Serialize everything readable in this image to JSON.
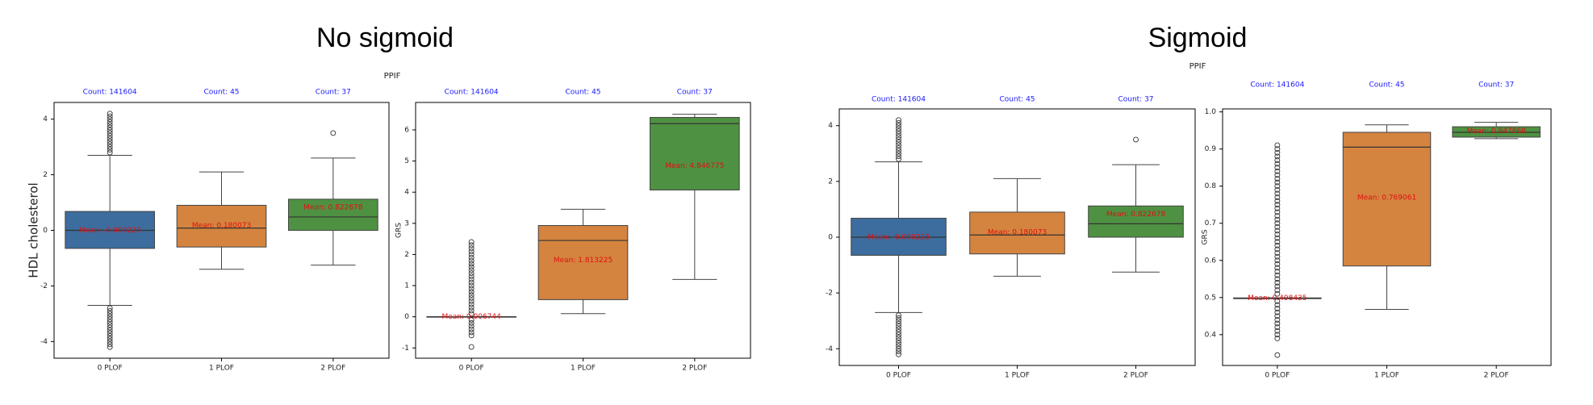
{
  "chart_data": [
    {
      "type": "box",
      "figure_title": "No sigmoid",
      "figure_subtitle": "PPIF",
      "ylabel": "HDL cholesterol",
      "categories": [
        "0 PLOF",
        "1 PLOF",
        "2 PLOF"
      ],
      "colors": [
        "#3d6d9e",
        "#d4843f",
        "#4f9142"
      ],
      "counts": [
        141604,
        45,
        37
      ],
      "count_labels": [
        "Count: 141604",
        "Count: 45",
        "Count: 37"
      ],
      "means": [
        -0.000223,
        0.180073,
        0.822678
      ],
      "mean_labels": [
        "Mean: -0.000223",
        "Mean: 0.180073",
        "Mean: 0.822678"
      ],
      "q1": [
        -0.65,
        -0.6,
        0
      ],
      "median": [
        0,
        0.08,
        0.48
      ],
      "q3": [
        0.68,
        0.9,
        1.12
      ],
      "whislo": [
        -2.7,
        -1.4,
        -1.25
      ],
      "whishi": [
        2.7,
        2.1,
        2.6
      ],
      "outliers": [
        [
          2.8,
          2.9,
          3.0,
          3.1,
          3.2,
          3.3,
          3.4,
          3.5,
          3.6,
          3.7,
          3.8,
          3.9,
          4.0,
          4.1,
          4.2,
          -2.8,
          -2.9,
          -3.0,
          -3.1,
          -3.2,
          -3.3,
          -3.4,
          -3.5,
          -3.6,
          -3.7,
          -3.8,
          -3.9,
          -4.0,
          -4.1,
          -4.2
        ],
        [],
        [
          3.5
        ]
      ],
      "ylim": [
        -4.6,
        4.6
      ],
      "yticks": [
        -4,
        -2,
        0,
        2,
        4
      ]
    },
    {
      "type": "box",
      "ylabel": "GRS",
      "categories": [
        "0 PLOF",
        "1 PLOF",
        "2 PLOF"
      ],
      "colors": [
        "#3d6d9e",
        "#d4843f",
        "#4f9142"
      ],
      "counts": [
        141604,
        45,
        37
      ],
      "count_labels": [
        "Count: 141604",
        "Count: 45",
        "Count: 37"
      ],
      "means": [
        0.006744,
        1.813225,
        4.846775
      ],
      "mean_labels": [
        "Mean: 0.006744",
        "Mean: 1.813225",
        "Mean: 4.846775"
      ],
      "q1": [
        0,
        0.55,
        4.07
      ],
      "median": [
        0,
        2.45,
        6.2
      ],
      "q3": [
        0,
        2.93,
        6.4
      ],
      "whislo": [
        0,
        0.1,
        1.2
      ],
      "whishi": [
        0,
        3.45,
        6.5
      ],
      "outliers": [
        [
          0.1,
          0.2,
          0.3,
          0.4,
          0.5,
          0.6,
          0.7,
          0.8,
          0.9,
          1.0,
          1.1,
          1.2,
          1.3,
          1.4,
          1.5,
          1.6,
          1.7,
          1.8,
          1.9,
          2.0,
          2.1,
          2.2,
          2.3,
          2.4,
          -0.1,
          -0.2,
          -0.3,
          -0.4,
          -0.5,
          -0.6,
          -0.97
        ],
        [],
        []
      ],
      "ylim": [
        -1.33,
        6.88
      ],
      "yticks": [
        -1,
        0,
        1,
        2,
        3,
        4,
        5,
        6
      ]
    },
    {
      "type": "box",
      "figure_title": "Sigmoid",
      "figure_subtitle": "PPIF",
      "categories": [
        "0 PLOF",
        "1 PLOF",
        "2 PLOF"
      ],
      "colors": [
        "#3d6d9e",
        "#d4843f",
        "#4f9142"
      ],
      "counts": [
        141604,
        45,
        37
      ],
      "count_labels": [
        "Count: 141604",
        "Count: 45",
        "Count: 37"
      ],
      "means": [
        -0.000223,
        0.180073,
        0.822678
      ],
      "mean_labels": [
        "Mean: -0.000223",
        "Mean: 0.180073",
        "Mean: 0.822678"
      ],
      "q1": [
        -0.65,
        -0.6,
        0
      ],
      "median": [
        0,
        0.08,
        0.48
      ],
      "q3": [
        0.68,
        0.9,
        1.12
      ],
      "whislo": [
        -2.7,
        -1.4,
        -1.25
      ],
      "whishi": [
        2.7,
        2.1,
        2.6
      ],
      "outliers": [
        [
          2.8,
          2.9,
          3.0,
          3.1,
          3.2,
          3.3,
          3.4,
          3.5,
          3.6,
          3.7,
          3.8,
          3.9,
          4.0,
          4.1,
          4.2,
          -2.8,
          -2.9,
          -3.0,
          -3.1,
          -3.2,
          -3.3,
          -3.4,
          -3.5,
          -3.6,
          -3.7,
          -3.8,
          -3.9,
          -4.0,
          -4.1,
          -4.2
        ],
        [],
        [
          3.5
        ]
      ],
      "ylim": [
        -4.6,
        4.6
      ],
      "yticks": [
        -4,
        -2,
        0,
        2,
        4
      ]
    },
    {
      "type": "box",
      "ylabel": "GRS",
      "categories": [
        "0 PLOF",
        "1 PLOF",
        "2 PLOF"
      ],
      "colors": [
        "#3d6d9e",
        "#d4843f",
        "#4f9142"
      ],
      "counts": [
        141604,
        45,
        37
      ],
      "count_labels": [
        "Count: 141604",
        "Count: 45",
        "Count: 37"
      ],
      "means": [
        0.498435,
        0.769061,
        0.947868
      ],
      "mean_labels": [
        "Mean: 0.498435",
        "Mean: 0.769061",
        "Mean: 0.947868"
      ],
      "q1": [
        0.497,
        0.585,
        0.932
      ],
      "median": [
        0.498,
        0.905,
        0.945
      ],
      "q3": [
        0.499,
        0.945,
        0.96
      ],
      "whislo": [
        0.497,
        0.468,
        0.928
      ],
      "whishi": [
        0.499,
        0.965,
        0.972
      ],
      "outliers": [
        [
          0.39,
          0.4,
          0.41,
          0.42,
          0.43,
          0.44,
          0.45,
          0.46,
          0.47,
          0.48,
          0.49,
          0.51,
          0.52,
          0.53,
          0.54,
          0.55,
          0.56,
          0.57,
          0.58,
          0.59,
          0.6,
          0.61,
          0.62,
          0.63,
          0.64,
          0.65,
          0.66,
          0.67,
          0.68,
          0.69,
          0.7,
          0.71,
          0.72,
          0.73,
          0.74,
          0.75,
          0.76,
          0.77,
          0.78,
          0.79,
          0.8,
          0.81,
          0.82,
          0.83,
          0.84,
          0.85,
          0.86,
          0.87,
          0.88,
          0.89,
          0.9,
          0.91,
          0.345
        ],
        [],
        []
      ],
      "ylim": [
        0.317,
        1.008
      ],
      "yticks": [
        0.4,
        0.5,
        0.6,
        0.7,
        0.8,
        0.9,
        {
          "value": 1,
          "label": "1.0"
        }
      ]
    }
  ]
}
